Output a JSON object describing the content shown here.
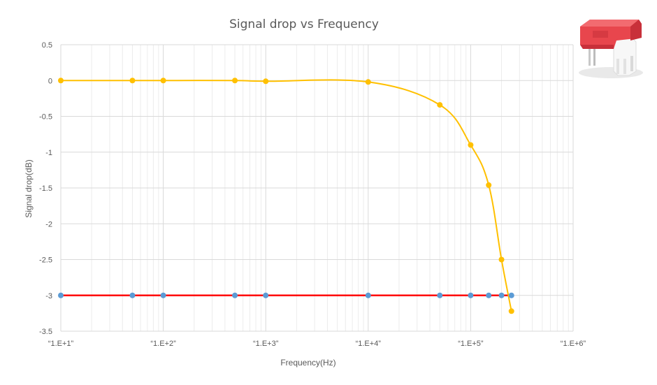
{
  "chart_data": {
    "type": "line",
    "title": "Signal drop vs Frequency",
    "xlabel": "Frequency(Hz)",
    "ylabel": "Signal drop(dB)",
    "x_scale": "log",
    "xlim": [
      10,
      1000000
    ],
    "ylim": [
      -3.5,
      0.5
    ],
    "x_ticks": [
      10,
      100,
      1000,
      10000,
      100000,
      1000000
    ],
    "x_tick_labels": [
      "“1.E+1”",
      "“1.E+2”",
      "“1.E+3”",
      "“1.E+4”",
      "“1.E+5”",
      "“1.E+6”"
    ],
    "y_ticks": [
      0.5,
      0,
      -0.5,
      -1,
      -1.5,
      -2,
      -2.5,
      -3,
      -3.5
    ],
    "y_tick_labels": [
      "0.5",
      "0",
      "-0.5",
      "-1",
      "-1.5",
      "-2",
      "-2.5",
      "-3",
      "-3.5"
    ],
    "grid": true,
    "legend": "none",
    "series": [
      {
        "color": "#FFC000",
        "marker_color": "#FFC000",
        "smooth": true,
        "x": [
          10,
          50,
          100,
          500,
          1000,
          10000,
          50000,
          100000,
          150000,
          200000,
          250000
        ],
        "y": [
          0,
          0,
          0,
          0,
          -0.01,
          -0.02,
          -0.34,
          -0.9,
          -1.46,
          -2.5,
          -3.22
        ]
      },
      {
        "color": "#FF0000",
        "marker_color": "#5B9BD5",
        "smooth": false,
        "x": [
          10,
          50,
          100,
          500,
          1000,
          10000,
          50000,
          100000,
          150000,
          200000,
          250000
        ],
        "y": [
          -3,
          -3,
          -3,
          -3,
          -3,
          -3,
          -3,
          -3,
          -3,
          -3,
          -3
        ]
      }
    ]
  },
  "decor": {
    "product_image_icon": "red-component-icon"
  }
}
